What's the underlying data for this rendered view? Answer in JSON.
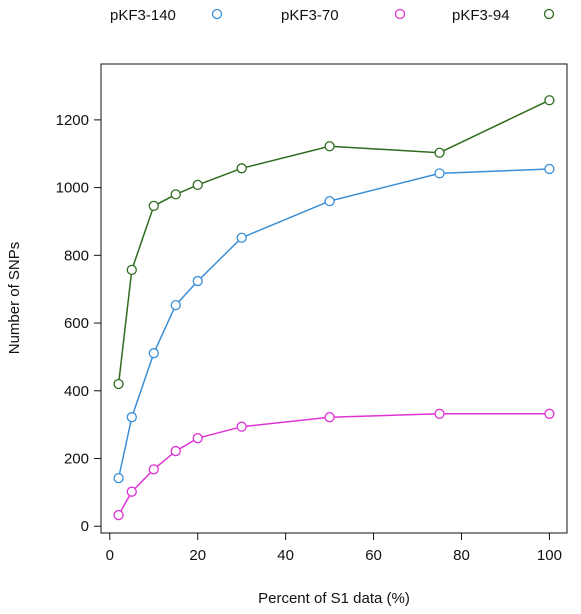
{
  "chart_data": {
    "type": "line",
    "xlabel": "Percent of S1 data (%)",
    "ylabel": "Number of SNPs",
    "xlim": [
      -2,
      104
    ],
    "ylim": [
      -20,
      1365
    ],
    "x_ticks": [
      0,
      20,
      40,
      60,
      80,
      100
    ],
    "y_ticks": [
      0,
      200,
      400,
      600,
      800,
      1000,
      1200
    ],
    "grid": false,
    "legend_position": "top",
    "x": [
      2,
      5,
      10,
      15,
      20,
      30,
      50,
      75,
      100
    ],
    "series": [
      {
        "name": "pKF3-140",
        "color": "#3a8fd6",
        "values": [
          142,
          322,
          511,
          653,
          724,
          852,
          960,
          1042,
          1055
        ]
      },
      {
        "name": "pKF3-70",
        "color": "#e033d6",
        "values": [
          33,
          102,
          168,
          222,
          260,
          294,
          322,
          332,
          332
        ]
      },
      {
        "name": "pKF3-94",
        "color": "#2e6b1e",
        "values": [
          420,
          757,
          946,
          980,
          1008,
          1057,
          1122,
          1103,
          1258
        ]
      }
    ]
  }
}
